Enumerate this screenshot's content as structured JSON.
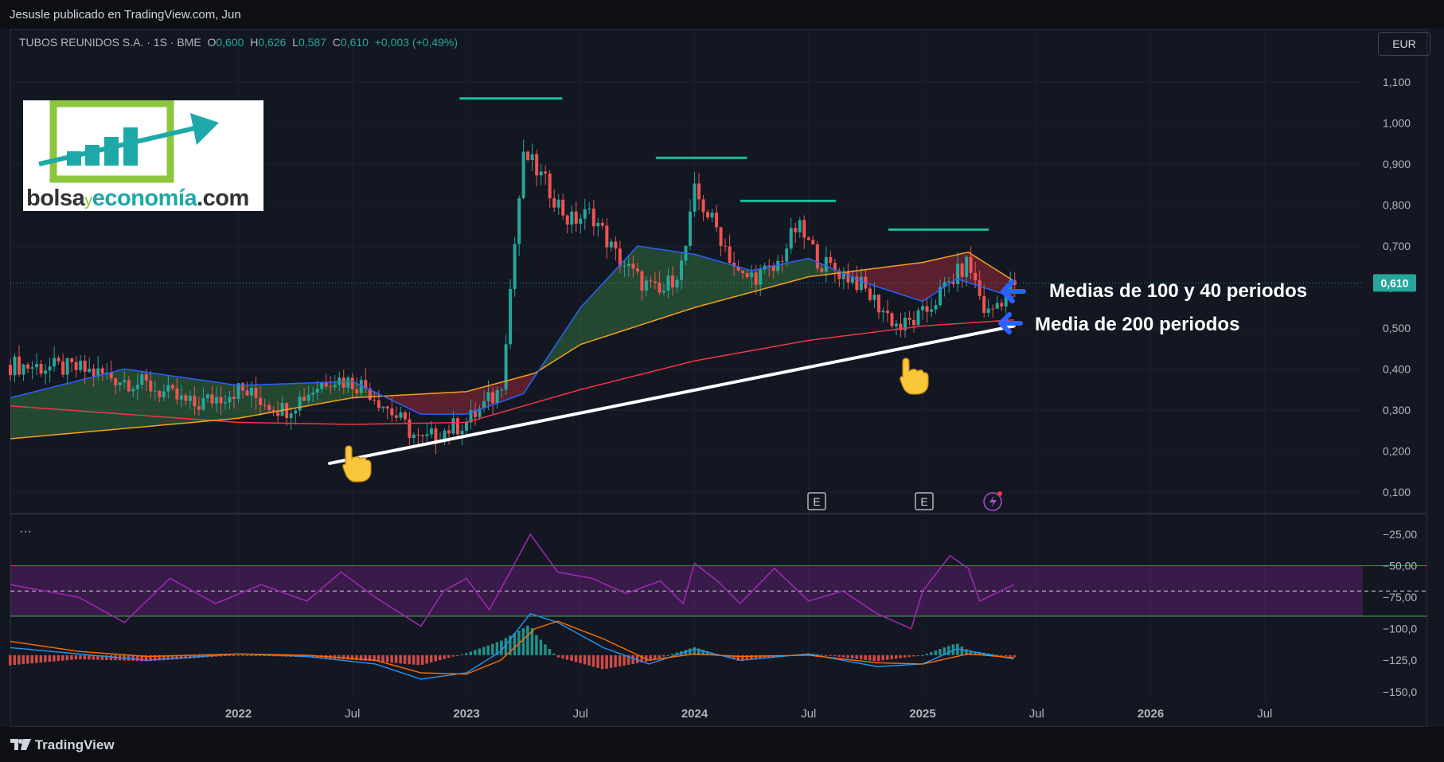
{
  "header": {
    "published": "Jesusle publicado en TradingView.com, Jun"
  },
  "legend": {
    "symbol": "TUBOS REUNIDOS S.A. · 1S · BME",
    "o_label": "O",
    "o_val": "0,600",
    "h_label": "H",
    "h_val": "0,626",
    "l_label": "L",
    "l_val": "0,587",
    "c_label": "C",
    "c_val": "0,610",
    "change": "+0,003 (+0,49%)"
  },
  "currency_button": "EUR",
  "logo": {
    "part1": "bolsa",
    "part2": "y",
    "part3": "economía",
    "part4": ".com"
  },
  "annotations": {
    "ma_100_40": "Medias de 100 y 40 periodos",
    "ma_200": "Media de 200 periodos"
  },
  "event_markers": {
    "earnings": "E"
  },
  "pane_menu": "···",
  "footer": {
    "brand": "TradingView"
  },
  "colors": {
    "background": "#131722",
    "up": "#26a69a",
    "down": "#ef5350",
    "ma40": "#2962ff",
    "ma100": "#f7a21b",
    "ma200": "#f23645",
    "rsi": "#9c27b0",
    "macd": "#2196f3",
    "signal": "#ff6d00",
    "levels": "#1abc9c"
  },
  "chart_data": [
    {
      "type": "candlestick",
      "title": "TUBOS REUNIDOS S.A. · 1S · BME",
      "x_ticks": [
        "2022",
        "Jul",
        "2023",
        "Jul",
        "2024",
        "Jul",
        "2025",
        "Jul",
        "2026",
        "Jul"
      ],
      "y_ticks": [
        "1,100",
        "1,000",
        "0,900",
        "0,800",
        "0,700",
        "0,600",
        "0,500",
        "0,400",
        "0,300",
        "0,200",
        "0,100"
      ],
      "ylim": [
        0.05,
        1.15
      ],
      "last_price": "0,610",
      "resistance_levels": [
        1.06,
        0.915,
        0.81,
        0.74
      ],
      "trendline": [
        [
          2022.4,
          0.17
        ],
        [
          2025.4,
          0.505
        ]
      ],
      "series": [
        {
          "name": "Media de 200 periodos",
          "points": [
            [
              2021.0,
              0.31
            ],
            [
              2022.0,
              0.27
            ],
            [
              2022.5,
              0.265
            ],
            [
              2023.0,
              0.27
            ],
            [
              2023.5,
              0.35
            ],
            [
              2024.0,
              0.42
            ],
            [
              2024.5,
              0.47
            ],
            [
              2025.0,
              0.505
            ],
            [
              2025.4,
              0.52
            ]
          ]
        },
        {
          "name": "Medias de 100 periodos",
          "points": [
            [
              2021.0,
              0.23
            ],
            [
              2022.0,
              0.28
            ],
            [
              2022.5,
              0.33
            ],
            [
              2023.0,
              0.345
            ],
            [
              2023.3,
              0.39
            ],
            [
              2023.5,
              0.46
            ],
            [
              2024.0,
              0.55
            ],
            [
              2024.5,
              0.625
            ],
            [
              2025.0,
              0.66
            ],
            [
              2025.2,
              0.685
            ],
            [
              2025.4,
              0.615
            ]
          ]
        },
        {
          "name": "Medias de 40 periodos",
          "points": [
            [
              2021.0,
              0.33
            ],
            [
              2021.5,
              0.4
            ],
            [
              2022.0,
              0.36
            ],
            [
              2022.5,
              0.37
            ],
            [
              2022.8,
              0.29
            ],
            [
              2023.0,
              0.29
            ],
            [
              2023.25,
              0.34
            ],
            [
              2023.5,
              0.55
            ],
            [
              2023.75,
              0.7
            ],
            [
              2024.0,
              0.68
            ],
            [
              2024.25,
              0.64
            ],
            [
              2024.5,
              0.67
            ],
            [
              2024.75,
              0.61
            ],
            [
              2025.0,
              0.565
            ],
            [
              2025.15,
              0.62
            ],
            [
              2025.4,
              0.575
            ]
          ]
        },
        {
          "name": "Precio",
          "points": [
            [
              2021.0,
              0.41
            ],
            [
              2021.3,
              0.4
            ],
            [
              2021.6,
              0.36
            ],
            [
              2021.8,
              0.31
            ],
            [
              2022.0,
              0.35
            ],
            [
              2022.2,
              0.3
            ],
            [
              2022.4,
              0.38
            ],
            [
              2022.55,
              0.36
            ],
            [
              2022.7,
              0.28
            ],
            [
              2022.8,
              0.22
            ],
            [
              2022.9,
              0.25
            ],
            [
              2023.0,
              0.27
            ],
            [
              2023.15,
              0.35
            ],
            [
              2023.25,
              0.93
            ],
            [
              2023.35,
              0.85
            ],
            [
              2023.45,
              0.76
            ],
            [
              2023.55,
              0.78
            ],
            [
              2023.65,
              0.68
            ],
            [
              2023.75,
              0.62
            ],
            [
              2023.85,
              0.58
            ],
            [
              2023.95,
              0.66
            ],
            [
              2024.0,
              0.83
            ],
            [
              2024.1,
              0.74
            ],
            [
              2024.2,
              0.62
            ],
            [
              2024.35,
              0.64
            ],
            [
              2024.45,
              0.75
            ],
            [
              2024.55,
              0.66
            ],
            [
              2024.7,
              0.62
            ],
            [
              2024.8,
              0.56
            ],
            [
              2024.9,
              0.5
            ],
            [
              2025.0,
              0.53
            ],
            [
              2025.1,
              0.6
            ],
            [
              2025.2,
              0.66
            ],
            [
              2025.28,
              0.53
            ],
            [
              2025.4,
              0.61
            ]
          ]
        }
      ]
    },
    {
      "type": "line",
      "y_ticks": [
        "−25,00",
        "−50,00",
        "−75,00",
        "−100,0",
        "−125,0",
        "−150,0"
      ],
      "ylim": [
        -160,
        -18
      ],
      "bands": {
        "upper": -50,
        "middle": -70,
        "lower": -90
      },
      "series": [
        {
          "points": [
            [
              2021.0,
              -65
            ],
            [
              2021.3,
              -75
            ],
            [
              2021.5,
              -95
            ],
            [
              2021.7,
              -60
            ],
            [
              2021.9,
              -80
            ],
            [
              2022.1,
              -65
            ],
            [
              2022.3,
              -78
            ],
            [
              2022.45,
              -55
            ],
            [
              2022.6,
              -75
            ],
            [
              2022.8,
              -98
            ],
            [
              2022.9,
              -70
            ],
            [
              2023.0,
              -60
            ],
            [
              2023.1,
              -85
            ],
            [
              2023.2,
              -52
            ],
            [
              2023.28,
              -25
            ],
            [
              2023.4,
              -55
            ],
            [
              2023.55,
              -60
            ],
            [
              2023.7,
              -72
            ],
            [
              2023.85,
              -62
            ],
            [
              2023.95,
              -80
            ],
            [
              2024.0,
              -48
            ],
            [
              2024.1,
              -62
            ],
            [
              2024.2,
              -80
            ],
            [
              2024.35,
              -52
            ],
            [
              2024.5,
              -78
            ],
            [
              2024.65,
              -70
            ],
            [
              2024.8,
              -88
            ],
            [
              2024.95,
              -100
            ],
            [
              2025.0,
              -70
            ],
            [
              2025.12,
              -42
            ],
            [
              2025.2,
              -52
            ],
            [
              2025.25,
              -78
            ],
            [
              2025.4,
              -65
            ]
          ]
        },
        {
          "points": [
            [
              2021.0,
              -115
            ],
            [
              2021.3,
              -120
            ],
            [
              2021.6,
              -125
            ],
            [
              2022.0,
              -120
            ],
            [
              2022.3,
              -122
            ],
            [
              2022.6,
              -128
            ],
            [
              2022.8,
              -140
            ],
            [
              2023.0,
              -135
            ],
            [
              2023.15,
              -118
            ],
            [
              2023.28,
              -88
            ],
            [
              2023.4,
              -95
            ],
            [
              2023.6,
              -115
            ],
            [
              2023.8,
              -128
            ],
            [
              2024.0,
              -116
            ],
            [
              2024.2,
              -125
            ],
            [
              2024.5,
              -120
            ],
            [
              2024.8,
              -130
            ],
            [
              2025.0,
              -128
            ],
            [
              2025.15,
              -116
            ],
            [
              2025.4,
              -124
            ]
          ]
        },
        {
          "points": [
            [
              2021.0,
              -110
            ],
            [
              2021.3,
              -118
            ],
            [
              2021.6,
              -122
            ],
            [
              2022.0,
              -120
            ],
            [
              2022.3,
              -121
            ],
            [
              2022.6,
              -125
            ],
            [
              2022.8,
              -135
            ],
            [
              2023.0,
              -136
            ],
            [
              2023.15,
              -125
            ],
            [
              2023.3,
              -100
            ],
            [
              2023.4,
              -94
            ],
            [
              2023.6,
              -108
            ],
            [
              2023.8,
              -125
            ],
            [
              2024.0,
              -120
            ],
            [
              2024.2,
              -122
            ],
            [
              2024.5,
              -121
            ],
            [
              2024.8,
              -127
            ],
            [
              2025.0,
              -128
            ],
            [
              2025.2,
              -120
            ],
            [
              2025.4,
              -123
            ]
          ]
        }
      ]
    }
  ]
}
